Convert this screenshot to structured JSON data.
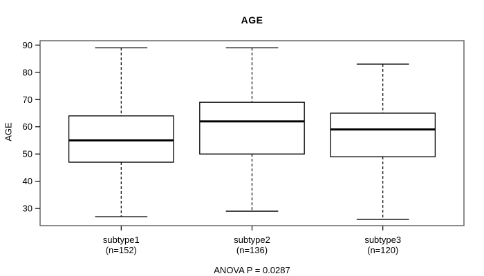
{
  "chart_data": {
    "type": "boxplot",
    "title": "AGE",
    "ylabel": "AGE",
    "xlabel": "",
    "footnote": "ANOVA P = 0.0287",
    "ylim": [
      23.7,
      91.6
    ],
    "yticks": [
      30,
      40,
      50,
      60,
      70,
      80,
      90
    ],
    "grid": false,
    "legend": "none",
    "categories": [
      "subtype1",
      "subtype2",
      "subtype3"
    ],
    "series": [
      {
        "label": "subtype1",
        "sublabel": "(n=152)",
        "n": 152,
        "min": 27,
        "q1": 47,
        "median": 55,
        "q3": 64,
        "max": 89
      },
      {
        "label": "subtype2",
        "sublabel": "(n=136)",
        "n": 136,
        "min": 29,
        "q1": 50,
        "median": 62,
        "q3": 69,
        "max": 89
      },
      {
        "label": "subtype3",
        "sublabel": "(n=120)",
        "n": 120,
        "min": 26,
        "q1": 49,
        "median": 59,
        "q3": 65,
        "max": 83
      }
    ],
    "colors": {
      "line": "#000000",
      "median": "#000000",
      "box_fill": "#ffffff",
      "frame": "#666666",
      "background": "#ffffff"
    }
  }
}
